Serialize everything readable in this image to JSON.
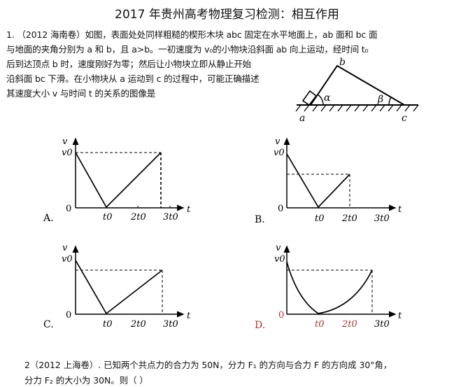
{
  "title": "2017 年贵州高考物理复习检测：相互作用",
  "question1": {
    "lines": [
      "1. （2012 海南卷）如图，表面处处同样粗糙的楔形木块 abc 固定在水平地面上，ab 面和 bc 面",
      "与地面的夹角分别为 a 和 b，且 a>b。一初速度为 v₀的小物块沿斜面 ab 向上运动，经时间 t₀",
      "后到达顶点 b 时，速度刚好为零；然后让小物块立即从静止开始",
      "沿斜面 bc 下滑。在小物块从 a 运动到 c 的过程中，可能正确描述",
      "其速度大小 v 与时间 t 的关系的图像是"
    ],
    "diagram": {
      "a": "a",
      "b": "b",
      "c": "c",
      "alpha": "α",
      "beta": "β"
    },
    "options": [
      {
        "label": "A.",
        "y_label": "v",
        "v0": "v0",
        "origin": "0",
        "x_label": "t",
        "ticks": [
          "t0",
          "2t0",
          "3t0"
        ]
      },
      {
        "label": "B.",
        "y_label": "v",
        "v0": "v0",
        "origin": "0",
        "x_label": "t",
        "ticks": [
          "t0",
          "2t0",
          "3t0"
        ]
      },
      {
        "label": "C.",
        "y_label": "v",
        "v0": "v0",
        "origin": "0",
        "x_label": "t",
        "ticks": [
          "t0",
          "2t0",
          "3t0"
        ]
      },
      {
        "label": "D.",
        "y_label": "v",
        "v0": "v0",
        "origin": "0",
        "x_label": "t",
        "ticks": [
          "t0",
          "2t0",
          "3t0"
        ]
      }
    ]
  },
  "question2": {
    "lines": [
      "2（2012 上海卷）. 已知两个共点力的合力为 50N，分力 F₁ 的方向与合力 F 的方向成 30°角，",
      "分力 F₂ 的大小为 30N。则（            ）"
    ]
  }
}
